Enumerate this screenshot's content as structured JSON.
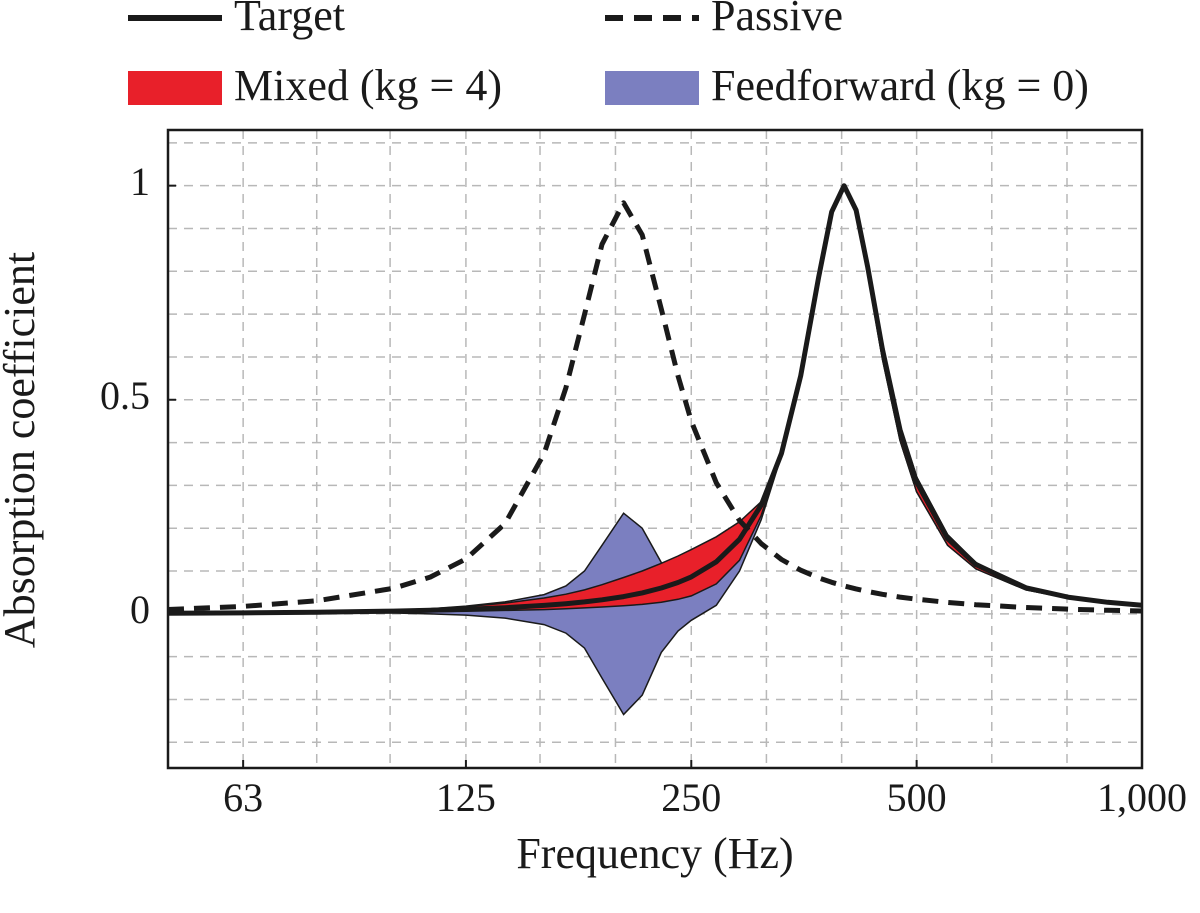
{
  "chart_data": {
    "type": "line",
    "xlabel": "Frequency (Hz)",
    "ylabel": "Absorption coefficient",
    "xscale": "log",
    "xlim": [
      50,
      1000
    ],
    "ylim": [
      -0.36,
      1.13
    ],
    "xticks": [
      63,
      125,
      250,
      500,
      {
        "value": 1000,
        "label": "1,000"
      }
    ],
    "yticks": [
      0,
      0.5,
      1
    ],
    "xgrid": [
      63,
      79,
      99,
      125,
      157,
      198,
      250,
      315,
      397,
      500,
      630,
      794
    ],
    "ygrid": [
      -0.3,
      -0.2,
      -0.1,
      0,
      0.1,
      0.2,
      0.3,
      0.4,
      0.5,
      0.6,
      0.7,
      0.8,
      0.9,
      1,
      1.1
    ],
    "grid": true,
    "legend": "top",
    "x": [
      50,
      63,
      79,
      100,
      112,
      125,
      141,
      159,
      170,
      180,
      190,
      203,
      215,
      228,
      240,
      250,
      270,
      290,
      310,
      330,
      350,
      370,
      385,
      400,
      415,
      430,
      450,
      475,
      500,
      550,
      600,
      700,
      800,
      900,
      1000
    ],
    "series": [
      {
        "name": "Target",
        "type": "line",
        "dashed": false,
        "color": "#1a1a1a",
        "values": [
          0.0015,
          0.0023,
          0.0038,
          0.0064,
          0.0083,
          0.0107,
          0.0144,
          0.0197,
          0.0236,
          0.0279,
          0.0328,
          0.0403,
          0.0489,
          0.0603,
          0.0733,
          0.0864,
          0.1216,
          0.174,
          0.254,
          0.375,
          0.556,
          0.787,
          0.939,
          1,
          0.943,
          0.811,
          0.618,
          0.43,
          0.308,
          0.176,
          0.115,
          0.0608,
          0.0385,
          0.0269,
          0.02
        ]
      },
      {
        "name": "Passive",
        "type": "line",
        "dashed": true,
        "color": "#1a1a1a",
        "values": [
          0.0102,
          0.0173,
          0.0305,
          0.0596,
          0.0858,
          0.128,
          0.211,
          0.374,
          0.528,
          0.699,
          0.863,
          0.96,
          0.885,
          0.712,
          0.556,
          0.45,
          0.306,
          0.218,
          0.164,
          0.127,
          0.102,
          0.084,
          0.0737,
          0.0652,
          0.0582,
          0.0523,
          0.0457,
          0.0392,
          0.0342,
          0.0267,
          0.0214,
          0.0148,
          0.0109,
          0.0084,
          0.0067
        ]
      },
      {
        "name": "Mixed (kg = 4)",
        "type": "band",
        "color": "#e8202a",
        "lower": [
          0.001,
          0.002,
          0.003,
          0.004,
          0.005,
          0.006,
          0.008,
          0.01,
          0.012,
          0.014,
          0.016,
          0.019,
          0.022,
          0.027,
          0.034,
          0.042,
          0.07,
          0.125,
          0.23,
          0.37,
          0.55,
          0.782,
          0.936,
          0.995,
          0.935,
          0.795,
          0.595,
          0.405,
          0.285,
          0.16,
          0.105,
          0.056,
          0.036,
          0.025,
          0.019
        ],
        "upper": [
          0.002,
          0.003,
          0.005,
          0.009,
          0.012,
          0.017,
          0.025,
          0.037,
          0.046,
          0.056,
          0.068,
          0.085,
          0.1,
          0.118,
          0.135,
          0.15,
          0.18,
          0.215,
          0.262,
          0.378,
          0.56,
          0.79,
          0.94,
          1,
          0.945,
          0.815,
          0.625,
          0.44,
          0.32,
          0.185,
          0.12,
          0.063,
          0.04,
          0.028,
          0.021
        ]
      },
      {
        "name": "Feedforward (kg = 0)",
        "type": "band",
        "color": "#7b7fc0",
        "lower": [
          0.001,
          0.002,
          0.002,
          0.002,
          0,
          -0.003,
          -0.01,
          -0.025,
          -0.045,
          -0.08,
          -0.15,
          -0.235,
          -0.19,
          -0.09,
          -0.04,
          -0.015,
          0.02,
          0.1,
          0.22,
          0.37,
          0.55,
          0.782,
          0.936,
          0.995,
          0.935,
          0.795,
          0.595,
          0.405,
          0.285,
          0.16,
          0.105,
          0.056,
          0.036,
          0.025,
          0.019
        ],
        "upper": [
          0.002,
          0.003,
          0.005,
          0.009,
          0.012,
          0.018,
          0.028,
          0.045,
          0.065,
          0.1,
          0.16,
          0.235,
          0.2,
          0.12,
          0.1,
          0.11,
          0.15,
          0.21,
          0.26,
          0.378,
          0.56,
          0.79,
          0.94,
          1,
          0.945,
          0.815,
          0.625,
          0.44,
          0.32,
          0.185,
          0.12,
          0.063,
          0.04,
          0.028,
          0.021
        ]
      }
    ]
  }
}
